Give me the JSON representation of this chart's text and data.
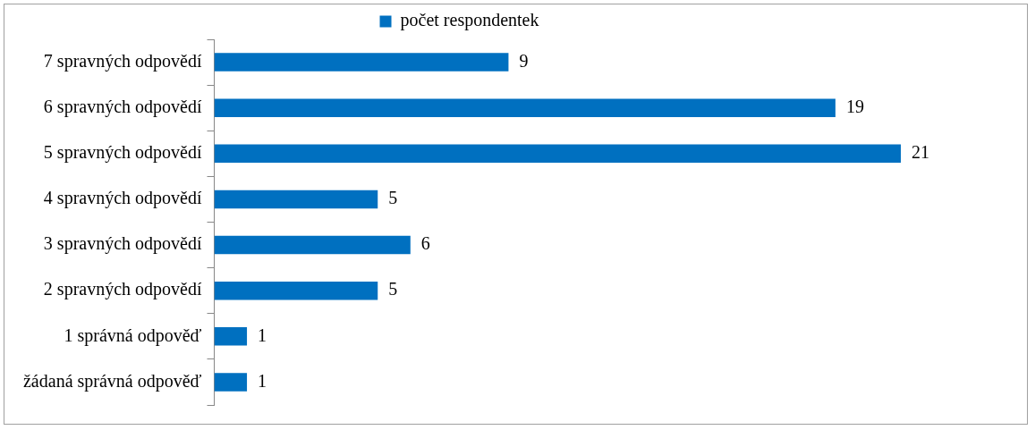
{
  "chart_data": {
    "type": "bar",
    "orientation": "horizontal",
    "categories": [
      "7 spravných odpovědí",
      "6 spravných odpovědí",
      "5 spravných odpovědí",
      "4 spravných odpovědí",
      "3 spravných odpovědí",
      "2 spravných odpovědí",
      "1 správná odpověď",
      "žádaná správná odpověď"
    ],
    "series": [
      {
        "name": "počet respondentek",
        "color": "#0070c0",
        "values": [
          9,
          19,
          21,
          5,
          6,
          5,
          1,
          1
        ]
      }
    ],
    "data_labels": true,
    "legend": "top",
    "grid": false,
    "tick_labels": "y"
  }
}
